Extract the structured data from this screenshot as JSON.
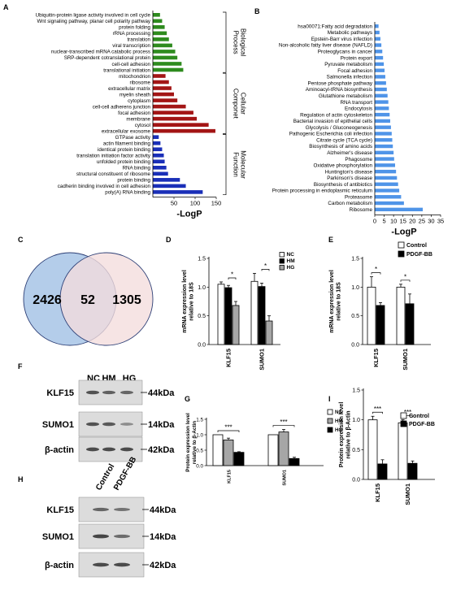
{
  "panels": {
    "A": "A",
    "B": "B",
    "C": "C",
    "D": "D",
    "E": "E",
    "F": "F",
    "G": "G",
    "H": "H",
    "I": "I"
  },
  "chart_data": [
    {
      "id": "A",
      "type": "bar",
      "orientation": "horizontal",
      "xlabel": "-LogP",
      "xticks": [
        "50",
        "100",
        "150"
      ],
      "xlim": [
        0,
        150
      ],
      "groups": [
        {
          "name": "Biological Process",
          "color": "#2e8b1e",
          "categories": [
            "Ubiquitin-protein ligase activity involved in cell cycle",
            "Wnt signaling pathway, planar cell polarity pathway",
            "protein folding",
            "rRNA processing",
            "translation",
            "viral transcription",
            "nuclear-transcribed mRNA catabolic process",
            "SRP-dependent cotranslational protein",
            "cell-cell adhesion",
            "translational initiation"
          ],
          "values": [
            17,
            22,
            28,
            33,
            38,
            46,
            53,
            58,
            68,
            72
          ]
        },
        {
          "name": "Cellular Componet",
          "color": "#a31515",
          "categories": [
            "mitochondrion",
            "ribosome",
            "extracellular matrix",
            "myelin sheath",
            "cytoplasm",
            "cell-cell adherens junction",
            "focal adhesion",
            "membrane",
            "cytosol",
            "extracellular exosome"
          ],
          "values": [
            30,
            38,
            44,
            50,
            58,
            78,
            96,
            104,
            132,
            148
          ]
        },
        {
          "name": "Molecular Function",
          "color": "#1a2fb8",
          "categories": [
            "GTPase activity",
            "actin filament binding",
            "identical protein binding",
            "translation initiation factor activity",
            "unfolded protein binding",
            "RNA binding",
            "structural constituent of ribosome",
            "protein binding",
            "cadherin binding involved in cell adhesion",
            "poly(A) RNA binding"
          ],
          "values": [
            14,
            18,
            22,
            26,
            28,
            32,
            36,
            64,
            78,
            118
          ]
        }
      ]
    },
    {
      "id": "B",
      "type": "bar",
      "orientation": "horizontal",
      "xlabel": "-LogP",
      "xticks": [
        "0",
        "5",
        "10",
        "15",
        "20",
        "25",
        "30",
        "35"
      ],
      "xlim": [
        0,
        35
      ],
      "color": "#4f94e8",
      "categories": [
        "hsa00071:Fatty acid degradation",
        "Metabolic pathways",
        "Epstein-Barr virus infection",
        "Non-alcoholic fatty liver disease (NAFLD)",
        "Proteoglycans in cancer",
        "Protein export",
        "Pyruvate metabolism",
        "Focal adhesion",
        "Salmonella infection",
        "Pentose phosphate pathway",
        "Aminoacyl-tRNA biosynthesis",
        "Glutathione metabolism",
        "RNA transport",
        "Endocytosis",
        "Regulation of actin cytoskeleton",
        "Bacterial invasion of epithelial cells",
        "Glycolysis / Gluconeogenesis",
        "Pathogenic Escherichia coli infection",
        "Citrate cycle (TCA cycle)",
        "Biosynthesis of amino acids",
        "Alzheimer's disease",
        "Phagosome",
        "Oxidative phosphorylation",
        "Huntington's disease",
        "Parkinson's disease",
        "Biosynthesis of antibiotics",
        "Protein processing in endoplasmic reticulum",
        "Proteasome",
        "Carbon metabolism",
        "Ribosome"
      ],
      "values": [
        2.0,
        2.5,
        3.0,
        3.5,
        4.0,
        4.4,
        4.8,
        5.2,
        5.6,
        6.0,
        6.4,
        6.8,
        7.2,
        7.5,
        7.9,
        8.2,
        8.6,
        9.0,
        9.3,
        9.6,
        10.0,
        10.3,
        10.8,
        11.3,
        11.8,
        12.4,
        13.0,
        14.0,
        15.5,
        25.5
      ]
    },
    {
      "id": "C",
      "type": "venn",
      "sets": [
        {
          "only": "2426",
          "color": "#b4cdea"
        },
        {
          "only": "1305",
          "color": "#f4dcdc"
        }
      ],
      "overlap": "52"
    },
    {
      "id": "D",
      "type": "bar",
      "ylabel": "mRNA expression level relative to 18S",
      "yticks": [
        "0.0",
        "0.5",
        "1.0",
        "1.5"
      ],
      "ylim": [
        0,
        1.5
      ],
      "categories": [
        "KLF15",
        "SUMO1"
      ],
      "series": [
        {
          "name": "NC",
          "color": "#ffffff",
          "values": [
            1.05,
            1.1
          ],
          "errors": [
            0.04,
            0.14
          ]
        },
        {
          "name": "HM",
          "color": "#000000",
          "values": [
            0.99,
            1.01
          ],
          "errors": [
            0.04,
            0.06
          ]
        },
        {
          "name": "HG",
          "color": "#a6a6a6",
          "values": [
            0.68,
            0.41
          ],
          "errors": [
            0.07,
            0.09
          ]
        }
      ],
      "significance": [
        {
          "category": 0,
          "from": 1,
          "to": 2,
          "label": "*"
        },
        {
          "category": 1,
          "from": 1,
          "to": 2,
          "label": "*"
        }
      ]
    },
    {
      "id": "E",
      "type": "bar",
      "ylabel": "mRNA expression level relative to 18S",
      "yticks": [
        "0.0",
        "0.5",
        "1.0",
        "1.5"
      ],
      "ylim": [
        0,
        1.5
      ],
      "categories": [
        "KLF15",
        "SUMO1"
      ],
      "series": [
        {
          "name": "Control",
          "color": "#ffffff",
          "values": [
            1.0,
            1.0
          ],
          "errors": [
            0.18,
            0.05
          ]
        },
        {
          "name": "PDGF-BB",
          "color": "#000000",
          "values": [
            0.68,
            0.71
          ],
          "errors": [
            0.05,
            0.17
          ]
        }
      ],
      "significance": [
        {
          "category": 0,
          "from": 0,
          "to": 1,
          "label": "*"
        },
        {
          "category": 1,
          "from": 0,
          "to": 1,
          "label": "*"
        }
      ]
    },
    {
      "id": "G",
      "type": "bar",
      "ylabel": "Protein expression level relative to β-Actin",
      "yticks": [
        "0.0",
        "0.5",
        "1.0",
        "1.5"
      ],
      "ylim": [
        0,
        1.5
      ],
      "categories": [
        "KLF15",
        "SUMO1"
      ],
      "series": [
        {
          "name": "NC",
          "color": "#ffffff",
          "values": [
            1.0,
            1.0
          ],
          "errors": [
            0.0,
            0.0
          ]
        },
        {
          "name": "HM",
          "color": "#a6a6a6",
          "values": [
            0.83,
            1.09
          ],
          "errors": [
            0.06,
            0.08
          ]
        },
        {
          "name": "HG",
          "color": "#000000",
          "values": [
            0.43,
            0.23
          ],
          "errors": [
            0.02,
            0.04
          ]
        }
      ],
      "significance": [
        {
          "category": 0,
          "from": 0,
          "to": 2,
          "label": "***"
        },
        {
          "category": 1,
          "from": 0,
          "to": 2,
          "label": "***"
        }
      ]
    },
    {
      "id": "I",
      "type": "bar",
      "ylabel": "Protein expression level relative to β-Actin",
      "yticks": [
        "0.0",
        "0.5",
        "1.0",
        "1.5"
      ],
      "ylim": [
        0,
        1.5
      ],
      "categories": [
        "KLF15",
        "SUMO1"
      ],
      "series": [
        {
          "name": "Control",
          "color": "#ffffff",
          "values": [
            1.0,
            0.95
          ],
          "errors": [
            0.06,
            0.05
          ]
        },
        {
          "name": "PDGF-BB",
          "color": "#000000",
          "values": [
            0.26,
            0.27
          ],
          "errors": [
            0.07,
            0.04
          ]
        }
      ],
      "significance": [
        {
          "category": 0,
          "from": 0,
          "to": 1,
          "label": "***"
        },
        {
          "category": 1,
          "from": 0,
          "to": 1,
          "label": "***"
        }
      ]
    }
  ],
  "blot_F": {
    "lanes": [
      "NC",
      "HM",
      "HG"
    ],
    "rows": [
      {
        "label": "KLF15",
        "size": "44kDa"
      },
      {
        "label": "SUMO1",
        "size": "14kDa"
      },
      {
        "label": "β-actin",
        "size": "42kDa"
      }
    ]
  },
  "blot_H": {
    "lanes": [
      "Control",
      "PDGF-BB"
    ],
    "rows": [
      {
        "label": "KLF15",
        "size": "44kDa"
      },
      {
        "label": "SUMO1",
        "size": "14kDa"
      },
      {
        "label": "β-actin",
        "size": "42kDa"
      }
    ]
  }
}
